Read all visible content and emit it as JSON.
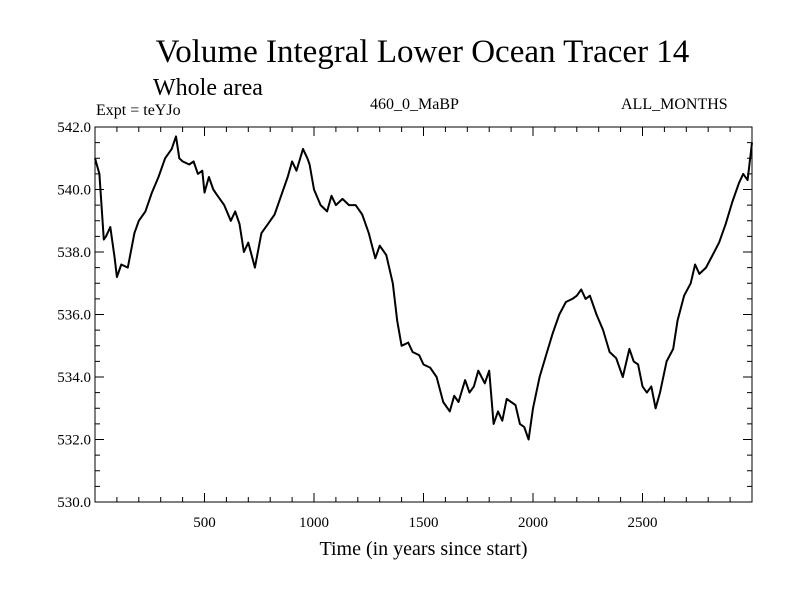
{
  "header": {
    "title": "Volume Integral Lower Ocean Tracer 14",
    "subtitle": "Whole area",
    "expt_label": "Expt = teYJo",
    "period_label": "460_0_MaBP",
    "months_label": "ALL_MONTHS"
  },
  "chart_data": {
    "type": "line",
    "title": "Volume Integral Lower Ocean Tracer 14",
    "subtitle": "Whole area",
    "xlabel": "Time (in years since start)",
    "ylabel": "",
    "xlim": [
      0,
      3000
    ],
    "ylim": [
      530.0,
      542.0
    ],
    "x_ticks": [
      500,
      1000,
      1500,
      2000,
      2500
    ],
    "y_ticks": [
      530.0,
      532.0,
      534.0,
      536.0,
      538.0,
      540.0,
      542.0
    ],
    "y_tick_labels": [
      "530.0",
      "532.0",
      "534.0",
      "536.0",
      "538.0",
      "540.0",
      "542.0"
    ],
    "series": [
      {
        "name": "Lower Ocean Tracer 14",
        "x": [
          0,
          20,
          40,
          50,
          70,
          90,
          100,
          120,
          150,
          180,
          200,
          230,
          260,
          290,
          320,
          350,
          370,
          385,
          400,
          430,
          450,
          470,
          490,
          500,
          520,
          540,
          560,
          590,
          620,
          640,
          660,
          680,
          700,
          730,
          760,
          790,
          820,
          850,
          880,
          900,
          920,
          950,
          970,
          980,
          1000,
          1030,
          1060,
          1080,
          1100,
          1130,
          1160,
          1190,
          1220,
          1250,
          1280,
          1300,
          1330,
          1360,
          1380,
          1400,
          1430,
          1450,
          1480,
          1500,
          1530,
          1560,
          1590,
          1620,
          1640,
          1660,
          1690,
          1710,
          1730,
          1750,
          1780,
          1800,
          1820,
          1840,
          1860,
          1880,
          1900,
          1920,
          1940,
          1960,
          1980,
          2000,
          2030,
          2060,
          2090,
          2120,
          2150,
          2180,
          2200,
          2220,
          2240,
          2260,
          2290,
          2320,
          2350,
          2380,
          2410,
          2440,
          2460,
          2480,
          2500,
          2520,
          2540,
          2560,
          2580,
          2610,
          2640,
          2660,
          2690,
          2720,
          2740,
          2760,
          2790,
          2820,
          2850,
          2880,
          2910,
          2940,
          2960,
          2980,
          3000
        ],
        "values": [
          541.0,
          540.5,
          538.4,
          538.5,
          538.8,
          537.8,
          537.2,
          537.6,
          537.5,
          538.6,
          539.0,
          539.3,
          539.9,
          540.4,
          541.0,
          541.3,
          541.7,
          541.0,
          540.9,
          540.8,
          540.9,
          540.5,
          540.6,
          539.9,
          540.4,
          540.0,
          539.8,
          539.5,
          539.0,
          539.3,
          538.9,
          538.0,
          538.3,
          537.5,
          538.6,
          538.9,
          539.2,
          539.8,
          540.4,
          540.9,
          540.6,
          541.3,
          541.0,
          540.8,
          540.0,
          539.5,
          539.3,
          539.8,
          539.5,
          539.7,
          539.5,
          539.5,
          539.2,
          538.6,
          537.8,
          538.2,
          537.9,
          537.0,
          535.8,
          535.0,
          535.1,
          534.8,
          534.7,
          534.4,
          534.3,
          534.0,
          533.2,
          532.9,
          533.4,
          533.2,
          533.9,
          533.5,
          533.7,
          534.2,
          533.8,
          534.2,
          532.5,
          532.9,
          532.6,
          533.3,
          533.2,
          533.1,
          532.5,
          532.4,
          532.0,
          533.0,
          534.0,
          534.7,
          535.4,
          536.0,
          536.4,
          536.5,
          536.6,
          536.8,
          536.5,
          536.6,
          536.0,
          535.5,
          534.8,
          534.6,
          534.0,
          534.9,
          534.5,
          534.4,
          533.7,
          533.5,
          533.7,
          533.0,
          533.5,
          534.5,
          534.9,
          535.8,
          536.6,
          537.0,
          537.6,
          537.3,
          537.5,
          537.9,
          538.3,
          538.9,
          539.6,
          540.2,
          540.5,
          540.3,
          541.5
        ]
      }
    ]
  }
}
